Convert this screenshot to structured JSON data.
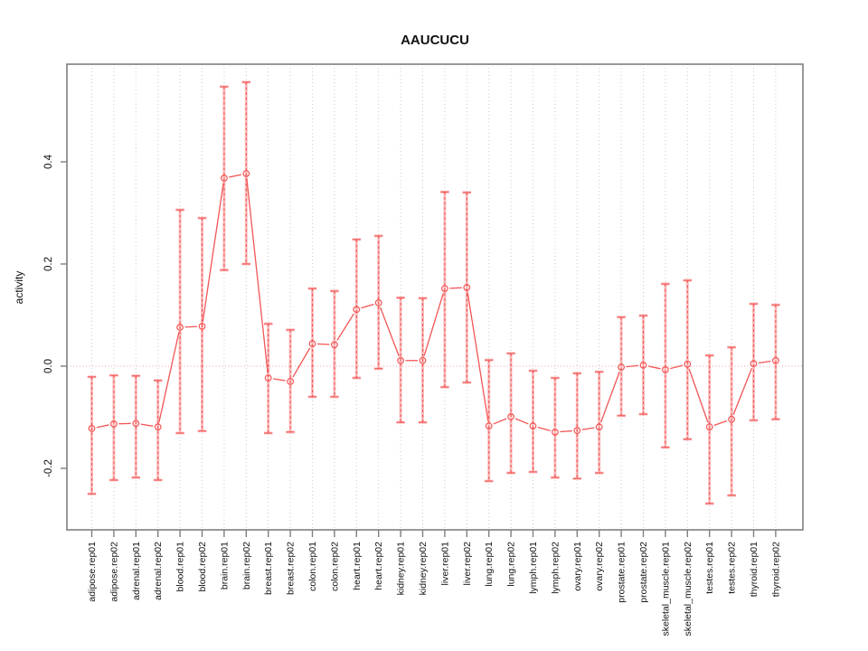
{
  "chart_data": {
    "type": "line",
    "title": "AAUCUCU",
    "xlabel": "",
    "ylabel": "activity",
    "legend_position": "none",
    "grid": "vertical-dotted-per-category",
    "marker": "open-circle",
    "errorbars": true,
    "zero_reference_line": 0.0,
    "ylim": [
      -0.3204,
      0.5911
    ],
    "yticks": [
      0.4,
      0.2,
      0.0,
      -0.2
    ],
    "ytick_labels": [
      "0.4",
      "0.2",
      "0.0",
      "-0.2"
    ],
    "colors": {
      "line": "#f25555",
      "band": "rgba(250, 140, 140, 0.55)",
      "zero_line": "rgba(238, 150, 150, 0.9)",
      "grid": "#cccccc",
      "frame": "#7f7f7f",
      "text": "#111111"
    },
    "categories": [
      "adipose.rep01",
      "adipose.rep02",
      "adrenal.rep01",
      "adrenal.rep02",
      "blood.rep01",
      "blood.rep02",
      "brain.rep01",
      "brain.rep02",
      "breast.rep01",
      "breast.rep02",
      "colon.rep01",
      "colon.rep02",
      "heart.rep01",
      "heart.rep02",
      "kidney.rep01",
      "kidney.rep02",
      "liver.rep01",
      "liver.rep02",
      "lung.rep01",
      "lung.rep02",
      "lymph.rep01",
      "lymph.rep02",
      "ovary.rep01",
      "ovary.rep02",
      "prostate.rep01",
      "prostate.rep02",
      "skeletal_muscle.rep01",
      "skeletal_muscle.rep02",
      "testes.rep01",
      "testes.rep02",
      "thyroid.rep01",
      "thyroid.rep02"
    ],
    "series": [
      {
        "name": "activity",
        "values": [
          -0.122,
          -0.113,
          -0.112,
          -0.119,
          0.076,
          0.078,
          0.368,
          0.377,
          -0.023,
          -0.03,
          0.044,
          0.042,
          0.111,
          0.124,
          0.011,
          0.011,
          0.152,
          0.154,
          -0.117,
          -0.099,
          -0.117,
          -0.129,
          -0.126,
          -0.119,
          -0.002,
          0.002,
          -0.007,
          0.004,
          -0.119,
          -0.104,
          0.005,
          0.011
        ],
        "err_lo": [
          -0.25,
          -0.223,
          -0.218,
          -0.223,
          -0.131,
          -0.127,
          0.188,
          0.2,
          -0.131,
          -0.129,
          -0.06,
          -0.06,
          -0.023,
          -0.005,
          -0.11,
          -0.11,
          -0.041,
          -0.032,
          -0.225,
          -0.209,
          -0.207,
          -0.218,
          -0.22,
          -0.209,
          -0.097,
          -0.094,
          -0.159,
          -0.143,
          -0.269,
          -0.253,
          -0.106,
          -0.104
        ],
        "err_hi": [
          -0.021,
          -0.018,
          -0.019,
          -0.028,
          0.306,
          0.29,
          0.547,
          0.556,
          0.083,
          0.071,
          0.152,
          0.147,
          0.248,
          0.255,
          0.134,
          0.133,
          0.341,
          0.34,
          0.012,
          0.025,
          -0.009,
          -0.023,
          -0.014,
          -0.011,
          0.096,
          0.099,
          0.161,
          0.168,
          0.021,
          0.037,
          0.122,
          0.12
        ]
      }
    ]
  }
}
